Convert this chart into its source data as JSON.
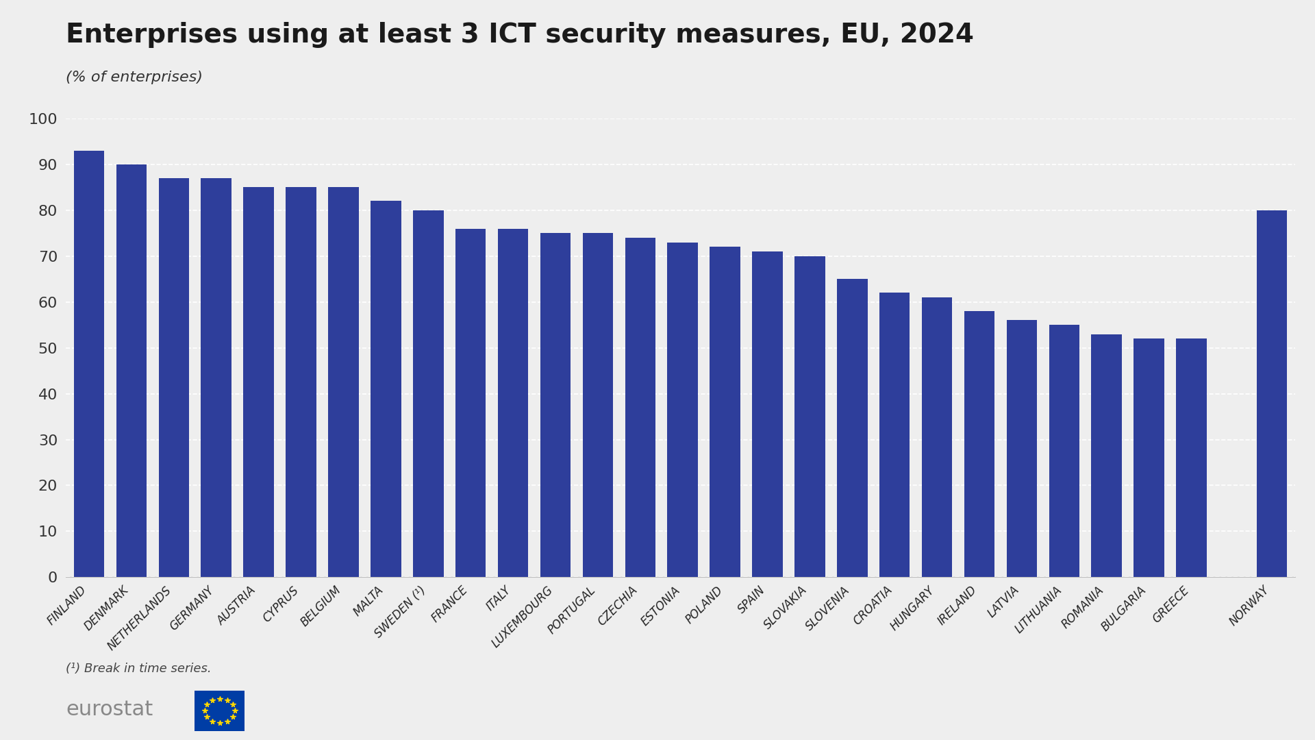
{
  "title": "Enterprises using at least 3 ICT security measures, EU, 2024",
  "subtitle": "(% of enterprises)",
  "footnote": "(¹) Break in time series.",
  "bar_color": "#2E3E9B",
  "background_color": "#EEEEEE",
  "plot_bg_color": "#EEEEEE",
  "footer_bg_color": "#FFFFFF",
  "ylim": [
    0,
    100
  ],
  "yticks": [
    0,
    10,
    20,
    30,
    40,
    50,
    60,
    70,
    80,
    90,
    100
  ],
  "categories": [
    "FINLAND",
    "DENMARK",
    "NETHERLANDS",
    "GERMANY",
    "AUSTRIA",
    "CYPRUS",
    "BELGIUM",
    "MALTA",
    "SWEDEN (¹)",
    "FRANCE",
    "ITALY",
    "LUXEMBOURG",
    "PORTUGAL",
    "CZECHIA",
    "ESTONIA",
    "POLAND",
    "SPAIN",
    "SLOVAKIA",
    "SLOVENIA",
    "CROATIA",
    "HUNGARY",
    "IRELAND",
    "LATVIA",
    "LITHUANIA",
    "ROMANIA",
    "BULGARIA",
    "GREECE",
    "NORWAY"
  ],
  "values": [
    93,
    90,
    87,
    87,
    85,
    85,
    85,
    82,
    80,
    76,
    76,
    75,
    75,
    74,
    73,
    72,
    71,
    70,
    65,
    62,
    61,
    58,
    56,
    55,
    53,
    52,
    52,
    80
  ],
  "title_fontsize": 28,
  "subtitle_fontsize": 16,
  "ytick_fontsize": 16,
  "xtick_fontsize": 12,
  "footnote_fontsize": 13,
  "eurostat_fontsize": 22
}
